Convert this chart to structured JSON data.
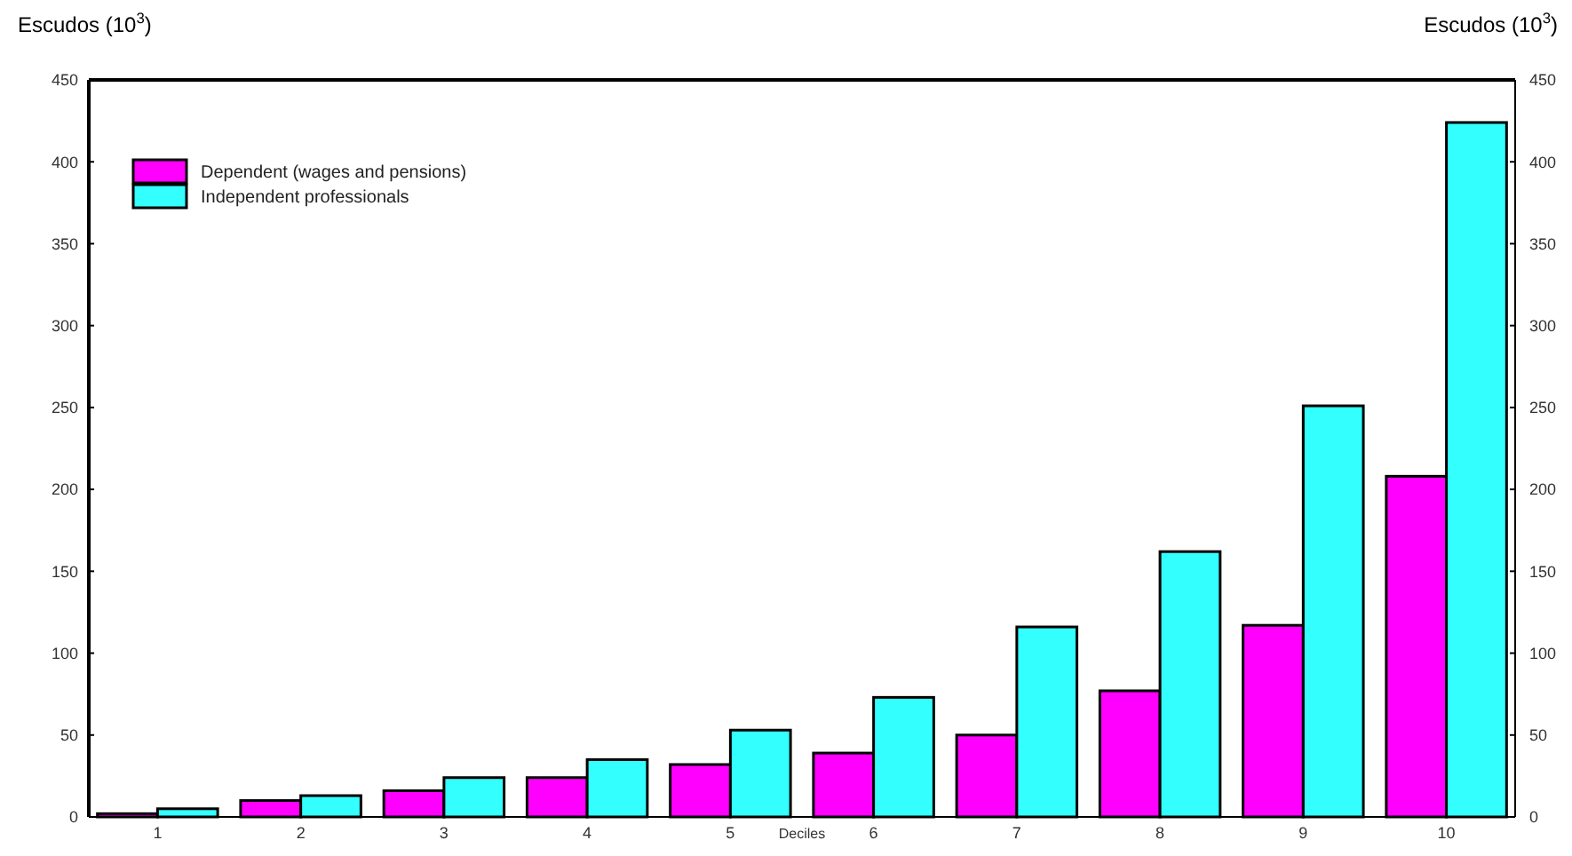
{
  "chart_data": {
    "type": "bar",
    "xlabel": "Deciles",
    "ylabel": "Escudos (10$^{3}$)",
    "y2label": "Escudos (10$^{3}$)",
    "categories": [
      "1",
      "2",
      "3",
      "4",
      "5",
      "6",
      "7",
      "8",
      "9",
      "10"
    ],
    "series": [
      {
        "name": "Dependent (wages and pensions)",
        "color": "#ff00ff",
        "values": [
          2,
          10,
          16,
          24,
          32,
          39,
          50,
          77,
          117,
          208
        ]
      },
      {
        "name": "Independent professionals",
        "color": "#33ffff",
        "values": [
          5,
          13,
          24,
          35,
          53,
          73,
          116,
          162,
          251,
          424
        ]
      }
    ],
    "ylim": [
      0,
      450
    ],
    "yticks": [
      0,
      50,
      100,
      150,
      200,
      250,
      300,
      350,
      400,
      450
    ],
    "y2lim": [
      0,
      450
    ],
    "y2ticks": [
      0,
      50,
      100,
      150,
      200,
      250,
      300,
      350,
      400,
      450
    ],
    "legend": "top left",
    "grid": false
  }
}
